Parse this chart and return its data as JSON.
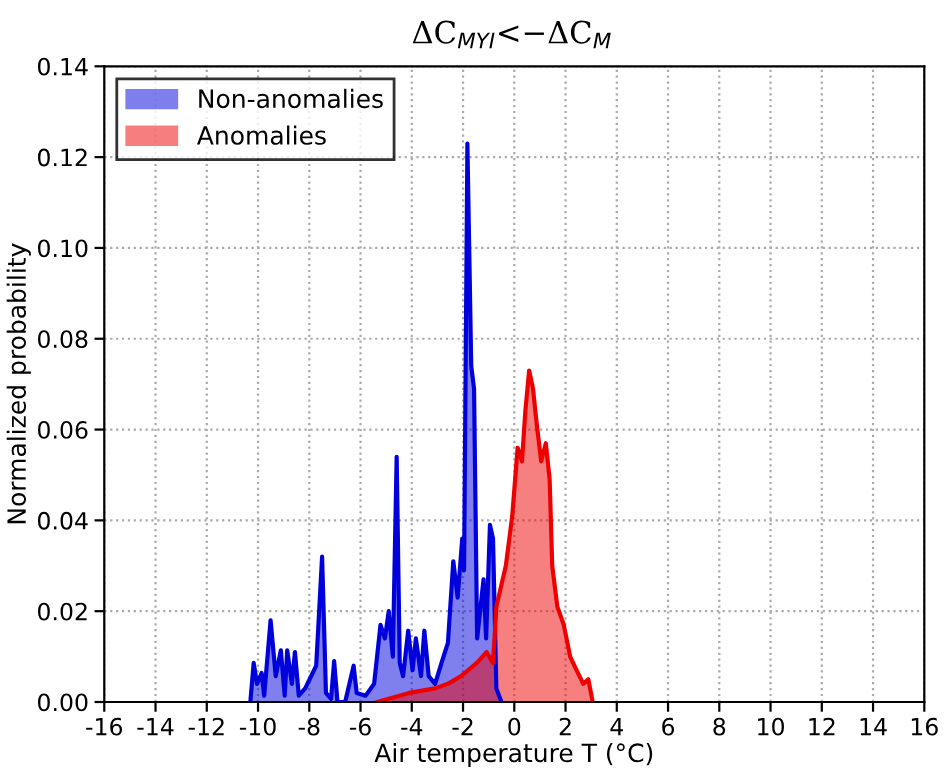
{
  "chart_data": {
    "type": "area",
    "title": "ΔC$_{MYI}$<−ΔC$_{M}$",
    "xlabel": "Air temperature T (°C)",
    "ylabel": "Normalized probability",
    "series": [
      {
        "name": "Non-anomalies",
        "color": "#0000dd",
        "x": [
          -10.3,
          -10.17,
          -10.04,
          -9.86,
          -9.76,
          -9.51,
          -9.31,
          -9.11,
          -8.96,
          -8.86,
          -8.68,
          -8.56,
          -8.41,
          -8.16,
          -7.9,
          -7.73,
          -7.5,
          -7.35,
          -7.15,
          -7.03,
          -6.9,
          -6.6,
          -6.27,
          -6.15,
          -5.8,
          -5.47,
          -5.22,
          -5.05,
          -4.9,
          -4.74,
          -4.59,
          -4.47,
          -4.34,
          -4.14,
          -3.97,
          -3.84,
          -3.64,
          -3.51,
          -3.34,
          -3.09,
          -2.84,
          -2.59,
          -2.38,
          -2.21,
          -2.03,
          -1.96,
          -1.83,
          -1.68,
          -1.57,
          -1.45,
          -1.2,
          -1.1,
          -0.95,
          -0.83,
          -0.7,
          -0.5
        ],
        "values": [
          0,
          0.0086,
          0.004,
          0.0064,
          0.0014,
          0.018,
          0.0057,
          0.0114,
          0.0014,
          0.0114,
          0.004,
          0.011,
          0.0014,
          0.003,
          0.006,
          0.008,
          0.032,
          0.002,
          0.0007,
          0.009,
          0,
          0,
          0.008,
          0.002,
          0.0014,
          0.004,
          0.017,
          0.014,
          0.02,
          0.01,
          0.054,
          0.0086,
          0.0057,
          0.0157,
          0.007,
          0.014,
          0.0057,
          0.0157,
          0.0057,
          0.004,
          0.0086,
          0.013,
          0.031,
          0.023,
          0.036,
          0.029,
          0.123,
          0.074,
          0.069,
          0.014,
          0.027,
          0.014,
          0.039,
          0.036,
          0.003,
          0
        ]
      },
      {
        "name": "Anomalies",
        "color": "#ee0000",
        "x": [
          -5.35,
          -4.1,
          -3.09,
          -2.59,
          -2.08,
          -1.46,
          -1.08,
          -0.83,
          -0.7,
          -0.33,
          -0.08,
          0.13,
          0.3,
          0.43,
          0.58,
          0.73,
          0.88,
          1.05,
          1.23,
          1.38,
          1.48,
          1.68,
          1.93,
          2.18,
          2.43,
          2.69,
          2.89,
          3.06
        ],
        "values": [
          0,
          0.002,
          0.003,
          0.004,
          0.0057,
          0.0086,
          0.011,
          0.0086,
          0.021,
          0.03,
          0.041,
          0.056,
          0.053,
          0.064,
          0.073,
          0.069,
          0.061,
          0.053,
          0.057,
          0.049,
          0.03,
          0.021,
          0.017,
          0.01,
          0.007,
          0.004,
          0.005,
          0
        ]
      }
    ],
    "xlim": [
      -16,
      16
    ],
    "xticks": [
      -16,
      -14,
      -12,
      -10,
      -8,
      -6,
      -4,
      -2,
      0,
      2,
      4,
      6,
      8,
      10,
      12,
      14,
      16
    ],
    "ylim": [
      0,
      0.14
    ],
    "yticks": [
      {
        "value": 0,
        "label": "0.00"
      },
      {
        "value": 0.02,
        "label": "0.02"
      },
      {
        "value": 0.04,
        "label": "0.04"
      },
      {
        "value": 0.06,
        "label": "0.06"
      },
      {
        "value": 0.08,
        "label": "0.08"
      },
      {
        "value": 0.1,
        "label": "0.10"
      },
      {
        "value": 0.12,
        "label": "0.12"
      },
      {
        "value": 0.14,
        "label": "0.14"
      }
    ],
    "grid": true,
    "legend": "top left"
  }
}
